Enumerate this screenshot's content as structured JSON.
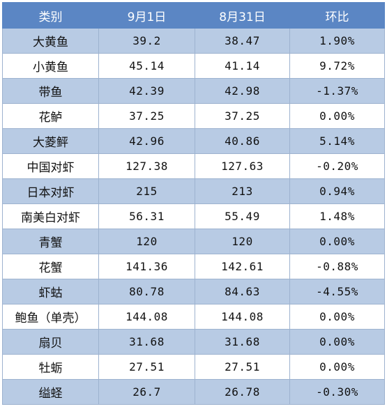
{
  "table": {
    "headers": [
      "类别",
      "9月1日",
      "8月31日",
      "环比"
    ],
    "rows": [
      [
        "大黄鱼",
        "39.2",
        "38.47",
        "1.90%"
      ],
      [
        "小黄鱼",
        "45.14",
        "41.14",
        "9.72%"
      ],
      [
        "带鱼",
        "42.39",
        "42.98",
        "-1.37%"
      ],
      [
        "花鲈",
        "37.25",
        "37.25",
        "0.00%"
      ],
      [
        "大菱鲆",
        "42.96",
        "40.86",
        "5.14%"
      ],
      [
        "中国对虾",
        "127.38",
        "127.63",
        "-0.20%"
      ],
      [
        "日本对虾",
        "215",
        "213",
        "0.94%"
      ],
      [
        "南美白对虾",
        "56.31",
        "55.49",
        "1.48%"
      ],
      [
        "青蟹",
        "120",
        "120",
        "0.00%"
      ],
      [
        "花蟹",
        "141.36",
        "142.61",
        "-0.88%"
      ],
      [
        "虾蛄",
        "80.78",
        "84.63",
        "-4.55%"
      ],
      [
        "鲍鱼（单壳）",
        "144.08",
        "144.08",
        "0.00%"
      ],
      [
        "扇贝",
        "31.68",
        "31.68",
        "0.00%"
      ],
      [
        "牡蛎",
        "27.51",
        "27.51",
        "0.00%"
      ],
      [
        "缢蛏",
        "26.7",
        "26.78",
        "-0.30%"
      ]
    ]
  },
  "colors": {
    "header_bg": "#5b86c4",
    "odd_row_bg": "#b8cbe4",
    "even_row_bg": "#ffffff",
    "border": "#9db2cf"
  }
}
